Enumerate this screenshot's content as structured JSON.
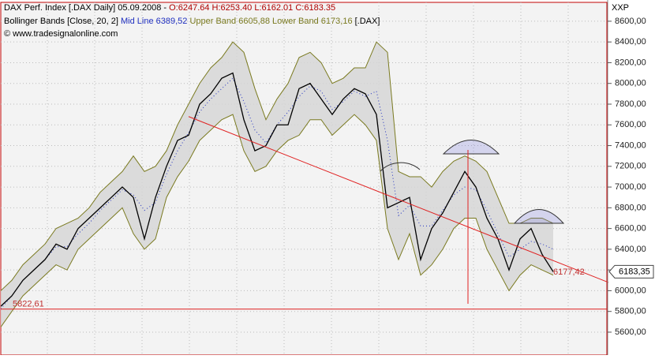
{
  "chart_data": {
    "type": "stock",
    "title": "DAX Perf. Index [.DAX  Daily] 05.09.2008 -",
    "ohlc_text": "O:6247.64 H:6253.40 L:6162.01 C:6183.35",
    "indicator_name": "Bollinger Bands [Close, 20, 2]",
    "mid_text": "Mid Line 6389,52",
    "bands_text": "Upper Band 6605,88 Lower Band 6173,16",
    "indicator_symbol": "[.DAX]",
    "source": "© www.tradesignalonline.com",
    "axis_tag": "XXP",
    "xlim": [
      0,
      55
    ],
    "ylim": [
      5379,
      8782
    ],
    "yticks": [
      {
        "value": 5600,
        "label": "5600,00"
      },
      {
        "value": 5800,
        "label": "5800,00"
      },
      {
        "value": 6000,
        "label": "6000,00"
      },
      {
        "value": 6200,
        "label": "6200,00"
      },
      {
        "value": 6400,
        "label": "6400,00"
      },
      {
        "value": 6600,
        "label": "6600,00"
      },
      {
        "value": 6800,
        "label": "6800,00"
      },
      {
        "value": 7000,
        "label": "7000,00"
      },
      {
        "value": 7200,
        "label": "7200,00"
      },
      {
        "value": 7400,
        "label": "7400,00"
      },
      {
        "value": 7600,
        "label": "7600,00"
      },
      {
        "value": 7800,
        "label": "7800,00"
      },
      {
        "value": 8000,
        "label": "8000,00"
      },
      {
        "value": 8200,
        "label": "8200,00"
      },
      {
        "value": 8400,
        "label": "8400,00"
      },
      {
        "value": 8600,
        "label": "8600,00"
      }
    ],
    "grid": true,
    "series": [
      {
        "name": "Close",
        "color": "#000000",
        "values": [
          5850,
          5950,
          6100,
          6200,
          6300,
          6450,
          6400,
          6600,
          6700,
          6800,
          6900,
          7000,
          6900,
          6500,
          6900,
          7200,
          7450,
          7500,
          7800,
          7900,
          8050,
          8100,
          7650,
          7350,
          7400,
          7600,
          7600,
          7950,
          8000,
          7850,
          7700,
          7850,
          7950,
          7900,
          7700,
          6800,
          6850,
          6900,
          6300,
          6600,
          6750,
          6950,
          7150,
          7000,
          6700,
          6500,
          6200,
          6500,
          6600,
          6350,
          6183
        ]
      },
      {
        "name": "Upper Band",
        "color": "#7a7a20",
        "values": [
          6000,
          6100,
          6250,
          6350,
          6450,
          6600,
          6650,
          6700,
          6800,
          6950,
          7050,
          7150,
          7300,
          7150,
          7200,
          7350,
          7600,
          7800,
          8000,
          8150,
          8250,
          8400,
          8300,
          7950,
          7650,
          7850,
          8000,
          8250,
          8300,
          8200,
          8000,
          8050,
          8150,
          8150,
          8400,
          8300,
          7150,
          7100,
          7100,
          7000,
          7150,
          7250,
          7300,
          7250,
          7150,
          6900,
          6650,
          6650,
          6700,
          6700,
          6650
        ]
      },
      {
        "name": "Lower Band",
        "color": "#7a7a20",
        "values": [
          5650,
          5800,
          5950,
          6050,
          6150,
          6250,
          6200,
          6400,
          6500,
          6600,
          6700,
          6800,
          6550,
          6400,
          6500,
          6900,
          7100,
          7250,
          7450,
          7550,
          7650,
          7700,
          7350,
          7150,
          7200,
          7350,
          7450,
          7500,
          7650,
          7650,
          7500,
          7600,
          7700,
          7600,
          7450,
          6600,
          6300,
          6550,
          6150,
          6250,
          6400,
          6600,
          6700,
          6700,
          6400,
          6200,
          6000,
          6150,
          6250,
          6200,
          6150
        ]
      },
      {
        "name": "Mid Line",
        "color": "#2030c0",
        "values": [
          5825,
          5950,
          6100,
          6200,
          6300,
          6425,
          6425,
          6550,
          6650,
          6775,
          6875,
          6975,
          6925,
          6775,
          6850,
          7125,
          7350,
          7525,
          7725,
          7850,
          7950,
          8050,
          7825,
          7550,
          7425,
          7600,
          7725,
          7875,
          7975,
          7925,
          7750,
          7825,
          7925,
          7875,
          7925,
          7450,
          6725,
          6825,
          6625,
          6625,
          6775,
          6925,
          7000,
          6975,
          6775,
          6550,
          6325,
          6400,
          6475,
          6450,
          6400
        ]
      }
    ],
    "trendline": {
      "x": [
        17,
        55
      ],
      "values": [
        7680,
        6080
      ],
      "color": "#e02020"
    },
    "support": {
      "value": 5822.61,
      "label": "5822,61"
    },
    "trend_label": {
      "value": 6177.42,
      "label": "6177,42"
    },
    "last_price": {
      "value": 6183.35,
      "label": "6183,35"
    }
  }
}
